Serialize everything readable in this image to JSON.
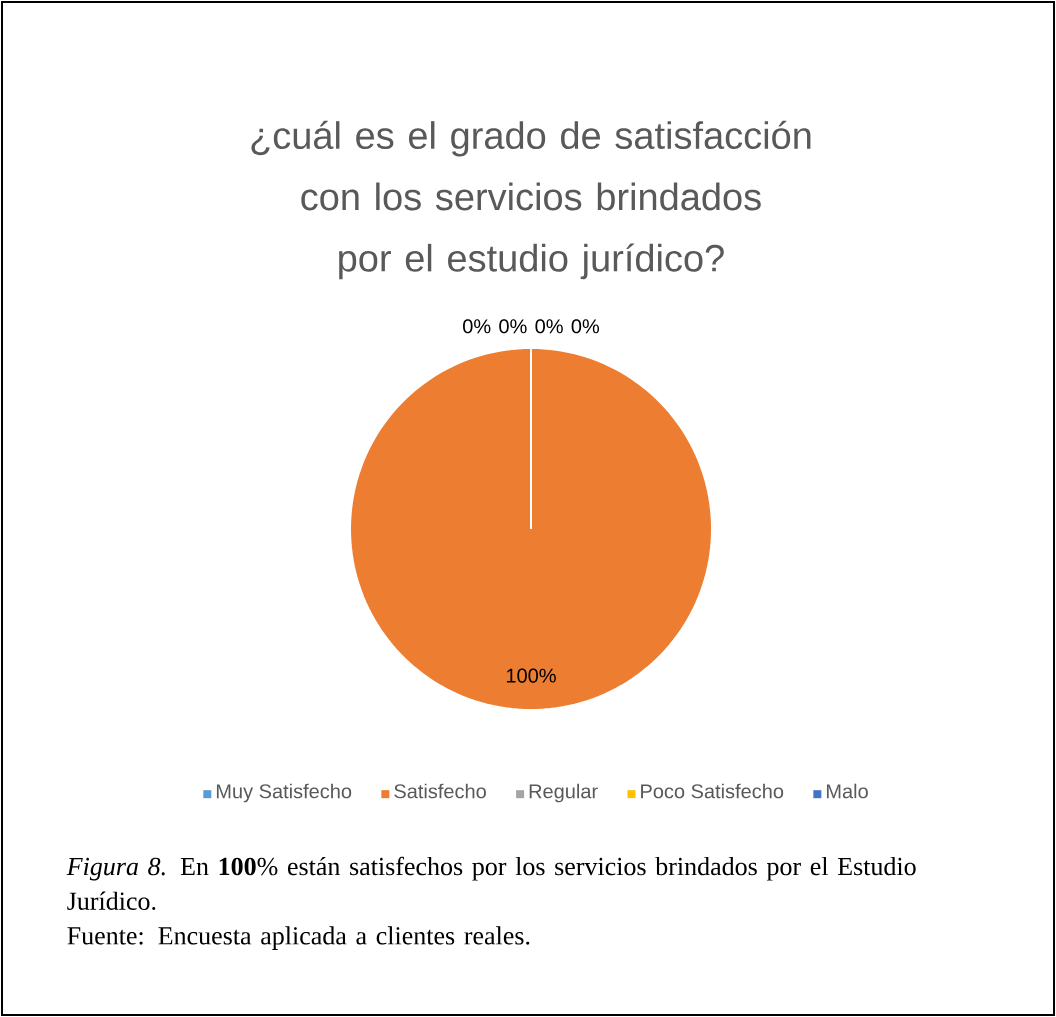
{
  "chart_data": {
    "type": "pie",
    "title": "¿cuál es el grado de satisfacción con los servicios brindados por el estudio jurídico?",
    "categories": [
      "Muy Satisfecho",
      "Satisfecho",
      "Regular",
      "Poco Satisfecho",
      "Malo"
    ],
    "values": [
      0,
      100,
      0,
      0,
      0
    ],
    "colors": [
      "#5b9bd5",
      "#ed7d31",
      "#a5a5a5",
      "#ffc000",
      "#4472c4"
    ],
    "value_labels": [
      "0%",
      "100%",
      "0%",
      "0%",
      "0%"
    ],
    "legend": "bottom",
    "annotations": [
      "*Figura 8.* En **100**% están satisfechos por los servicios brindados por el Estudio Jurídico.",
      "Fuente: Encuesta aplicada a clientes reales."
    ]
  }
}
